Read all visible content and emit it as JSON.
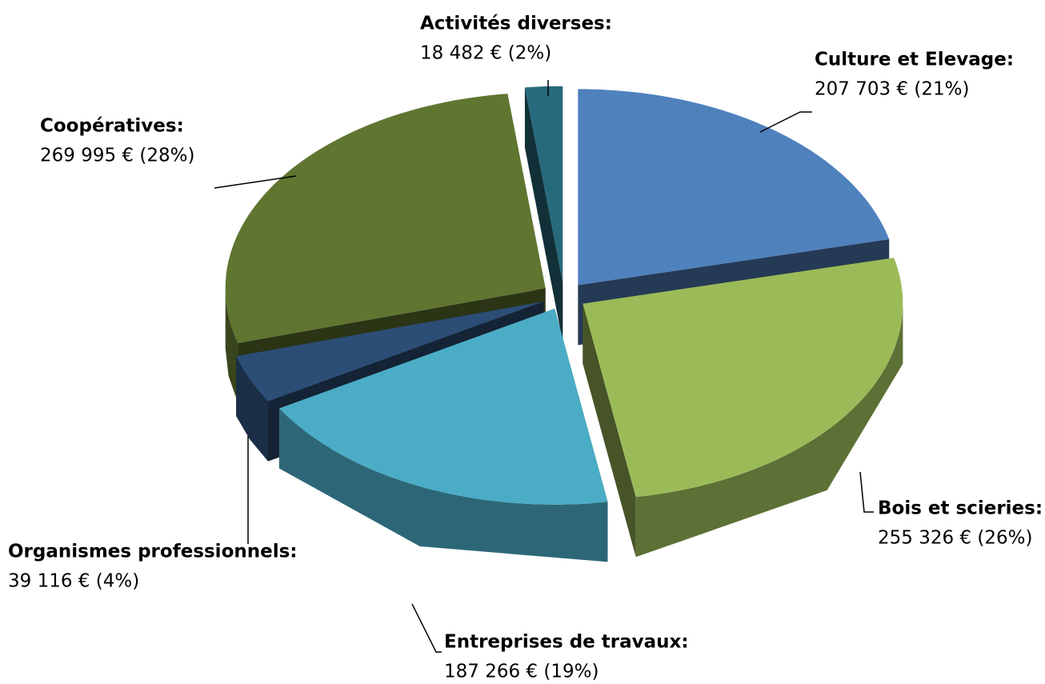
{
  "chart_data": {
    "type": "pie",
    "categories": [
      "Culture et Elevage:",
      "Bois et scieries:",
      "Entreprises de travaux:",
      "Organismes professionnels:",
      "Coopératives:",
      "Activités diverses:"
    ],
    "values": [
      207703,
      255326,
      187266,
      39116,
      269995,
      18482
    ],
    "value_labels": [
      "207 703 € (21%)",
      "255 326 € (26%)",
      "187 266 € (19%)",
      "39 116 € (4%)",
      "269 995 € (28%)",
      "18 482 € (2%)"
    ],
    "colors": [
      "#4f81bd",
      "#9bbb59",
      "#4bacc6",
      "#2c4d75",
      "#5f7530",
      "#276a7c"
    ]
  }
}
